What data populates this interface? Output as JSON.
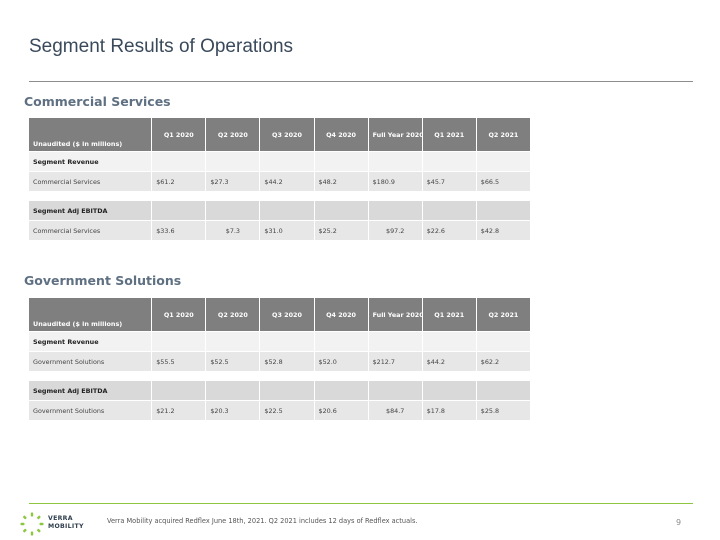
{
  "page": {
    "title": "Segment Results of Operations",
    "footnote": "Verra Mobility acquired Redflex June 18th, 2021. Q2 2021 includes 12 days of Redflex actuals.",
    "page_number": "9",
    "logo_line1": "VERRA",
    "logo_line2": "MOBILITY"
  },
  "columns": [
    "Q1 2020",
    "Q2 2020",
    "Q3 2020",
    "Q4 2020",
    "Full Year 2020",
    "Q1 2021",
    "Q2 2021"
  ],
  "header_label": "Unaudited ($ in millions)",
  "commercial": {
    "heading": "Commercial Services",
    "revenue_label": "Segment Revenue",
    "revenue_row": {
      "label": "Commercial Services",
      "values": [
        "$61.2",
        "$27.3",
        "$44.2",
        "$48.2",
        "$180.9",
        "$45.7",
        "$66.5"
      ]
    },
    "ebitda_label": "Segment Adj EBITDA",
    "ebitda_row": {
      "label": "Commercial Services",
      "values": [
        "$33.6",
        "$7.3",
        "$31.0",
        "$25.2",
        "$97.2",
        "$22.6",
        "$42.8"
      ]
    }
  },
  "government": {
    "heading": "Government Solutions",
    "revenue_label": "Segment Revenue",
    "revenue_row": {
      "label": "Government Solutions",
      "values": [
        "$55.5",
        "$52.5",
        "$52.8",
        "$52.0",
        "$212.7",
        "$44.2",
        "$62.2"
      ]
    },
    "ebitda_label": "Segment Adj EBITDA",
    "ebitda_row": {
      "label": "Government Solutions",
      "values": [
        "$21.2",
        "$20.3",
        "$22.5",
        "$20.6",
        "$84.7",
        "$17.8",
        "$25.8"
      ]
    }
  },
  "colors": {
    "header_bg": "#7f7f7f",
    "accent_green": "#8dc63f",
    "heading_blue": "#5f7082"
  }
}
